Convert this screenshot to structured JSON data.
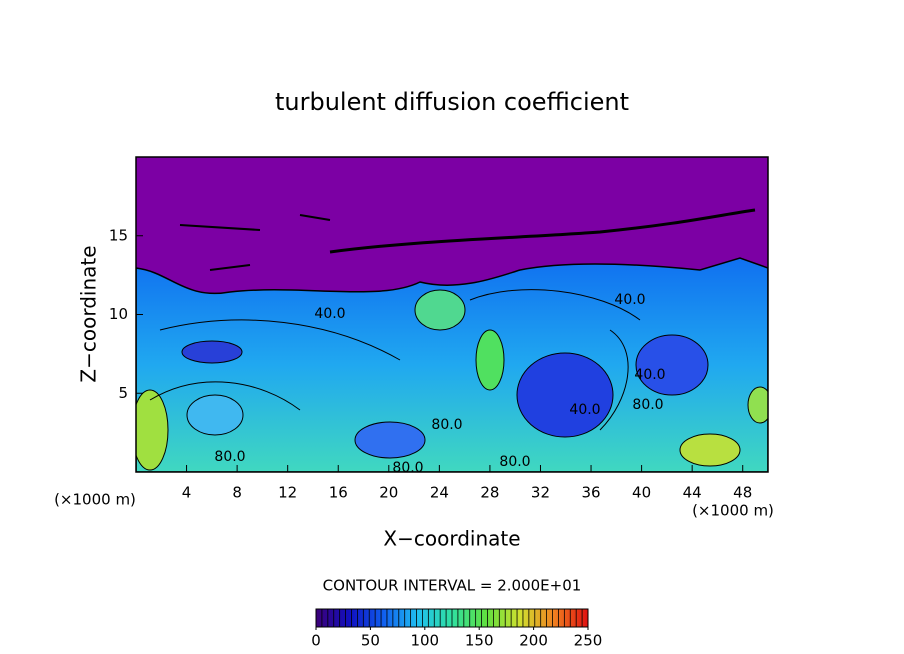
{
  "chart_data": {
    "type": "contour",
    "title": "turbulent diffusion coefficient",
    "x_label": "X−coordinate",
    "y_label": "Z−coordinate",
    "x_unit": "(×1000 m)",
    "y_unit": "(×1000 m)",
    "xlim": [
      0,
      50
    ],
    "ylim": [
      0,
      20
    ],
    "xticks": [
      4,
      8,
      12,
      16,
      20,
      24,
      28,
      32,
      36,
      40,
      44,
      48
    ],
    "yticks": [
      5,
      10,
      15
    ],
    "contour_interval": "CONTOUR INTERVAL = 2.000E+01",
    "contour_labels": [
      "40.0",
      "40.0",
      "40.0",
      "40.0",
      "80.0",
      "80.0",
      "80.0",
      "80.0",
      "80.0"
    ],
    "colorbar": {
      "clim": [
        0,
        250
      ],
      "ticks": [
        0,
        50,
        100,
        150,
        200,
        250
      ],
      "colors": [
        "#3c0078",
        "#1010c0",
        "#1060f0",
        "#20c0f0",
        "#30e0a0",
        "#60e040",
        "#d0e030",
        "#f08020",
        "#e01010"
      ]
    }
  }
}
